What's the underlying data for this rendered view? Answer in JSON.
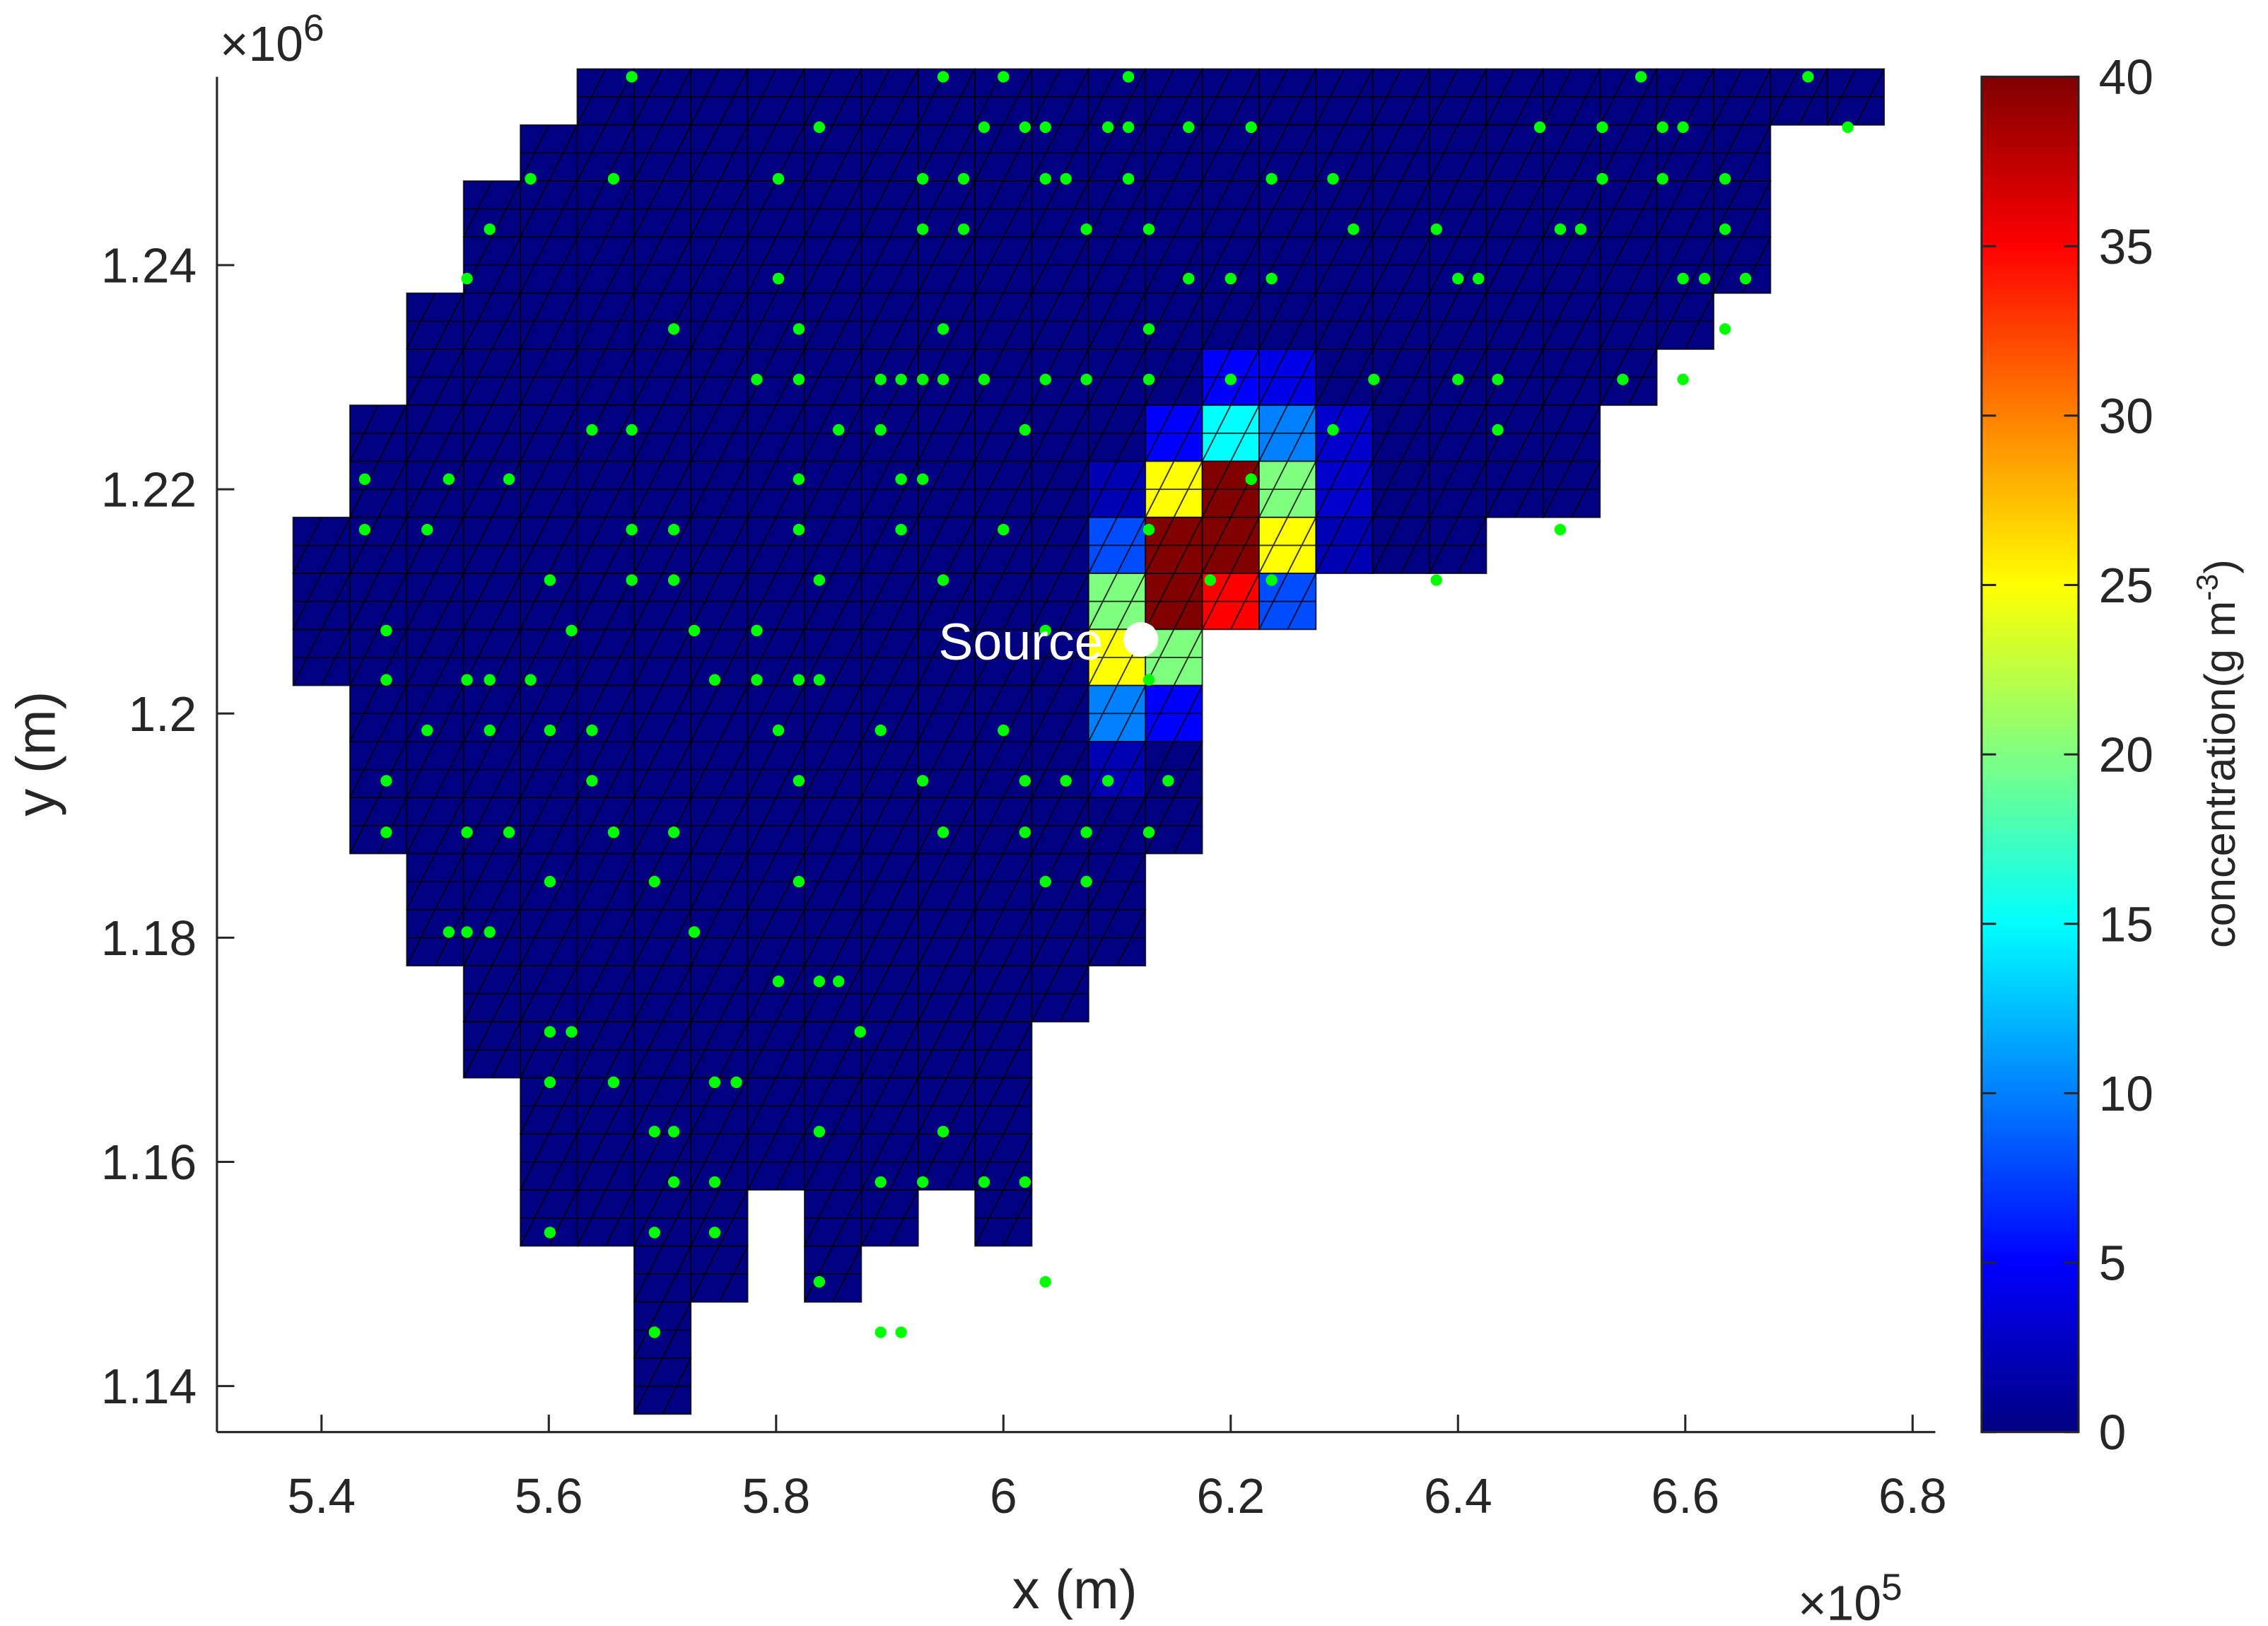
{
  "chart_data": {
    "type": "meshmap",
    "x_label": "x (m)",
    "y_label": "y (m)",
    "x_exponent": {
      "base": "×10",
      "power": "5"
    },
    "y_exponent": {
      "base": "×10",
      "power": "6"
    },
    "xlim": [
      530800,
      682000
    ],
    "ylim": [
      1135900,
      1256800
    ],
    "xticks": [
      {
        "value": 540000,
        "label": "5.4"
      },
      {
        "value": 560000,
        "label": "5.6"
      },
      {
        "value": 580000,
        "label": "5.8"
      },
      {
        "value": 600000,
        "label": "6"
      },
      {
        "value": 620000,
        "label": "6.2"
      },
      {
        "value": 640000,
        "label": "6.4"
      },
      {
        "value": 660000,
        "label": "6.6"
      },
      {
        "value": 680000,
        "label": "6.8"
      }
    ],
    "yticks": [
      {
        "value": 1140000,
        "label": "1.14"
      },
      {
        "value": 1160000,
        "label": "1.16"
      },
      {
        "value": 1180000,
        "label": "1.18"
      },
      {
        "value": 1200000,
        "label": "1.2"
      },
      {
        "value": 1220000,
        "label": "1.22"
      },
      {
        "value": 1240000,
        "label": "1.24"
      }
    ],
    "colormap": "jet",
    "clim": [
      0,
      40
    ],
    "cticks": [
      0,
      5,
      10,
      15,
      20,
      25,
      30,
      35,
      40
    ],
    "colorbar_label": {
      "text": "concentration(g m",
      "sup": "-3",
      "end": ")"
    },
    "x": [
      540000,
      545000,
      550000,
      555000,
      560000,
      565000,
      570000,
      575000,
      580000,
      585000,
      590000,
      595000,
      600000,
      605000,
      610000,
      615000,
      620000,
      625000,
      630000,
      635000,
      640000,
      645000,
      650000,
      655000,
      660000,
      665000,
      670000,
      675000
    ],
    "y": [
      1255000,
      1250000,
      1245000,
      1240000,
      1235000,
      1230000,
      1225000,
      1220000,
      1215000,
      1210000,
      1205000,
      1200000,
      1195000,
      1190000,
      1185000,
      1180000,
      1175000,
      1170000,
      1165000,
      1160000,
      1155000,
      1150000,
      1145000,
      1140000
    ],
    "values": [
      [
        null,
        null,
        null,
        null,
        null,
        0,
        0,
        0,
        0,
        0,
        0,
        0,
        0,
        0,
        0,
        0,
        0,
        0,
        0,
        0,
        0,
        0,
        0,
        0,
        0,
        0,
        0,
        0
      ],
      [
        null,
        null,
        null,
        null,
        0,
        0,
        0,
        0,
        0,
        0,
        0,
        0,
        0,
        0,
        0,
        0,
        0,
        0,
        0,
        0,
        0,
        0,
        0,
        0,
        0,
        0,
        null,
        null
      ],
      [
        null,
        null,
        null,
        0,
        0,
        0,
        0,
        0,
        0,
        0,
        0,
        0,
        0,
        0,
        0,
        0,
        0,
        0,
        0,
        0,
        0,
        0,
        0,
        0,
        0,
        0,
        null,
        null
      ],
      [
        null,
        null,
        null,
        0,
        0,
        0,
        0,
        0,
        0,
        0,
        0,
        0,
        0,
        0,
        0,
        0,
        0,
        0,
        0,
        0,
        0,
        0,
        0,
        0,
        0,
        0,
        null,
        null
      ],
      [
        null,
        null,
        0,
        0,
        0,
        0,
        0,
        0,
        0,
        0,
        0,
        0,
        0,
        0,
        0,
        0,
        0,
        0,
        0,
        0,
        0,
        0,
        0,
        0,
        0,
        null,
        null,
        null
      ],
      [
        null,
        null,
        0,
        0,
        0,
        0,
        0,
        0,
        0,
        0,
        0,
        0,
        0,
        0,
        0,
        0,
        5,
        4,
        0,
        0,
        0,
        0,
        0,
        0,
        null,
        null,
        null,
        null
      ],
      [
        null,
        0,
        0,
        0,
        0,
        0,
        0,
        0,
        0,
        0,
        0,
        0,
        0,
        0,
        0,
        5,
        15,
        10,
        3,
        0,
        0,
        0,
        0,
        null,
        null,
        null,
        null,
        null
      ],
      [
        null,
        0,
        0,
        0,
        0,
        0,
        0,
        0,
        0,
        0,
        0,
        0,
        0,
        0,
        2,
        25,
        40,
        20,
        3,
        0,
        0,
        0,
        0,
        null,
        null,
        null,
        null,
        null
      ],
      [
        0,
        0,
        0,
        0,
        0,
        0,
        0,
        0,
        0,
        0,
        0,
        0,
        0,
        0,
        8,
        40,
        40,
        25,
        2,
        0,
        0,
        null,
        null,
        null,
        null,
        null,
        null,
        null
      ],
      [
        0,
        0,
        0,
        0,
        0,
        0,
        0,
        0,
        0,
        0,
        0,
        0,
        0,
        0,
        20,
        40,
        35,
        8,
        null,
        null,
        null,
        null,
        null,
        null,
        null,
        null,
        null,
        null
      ],
      [
        0,
        0,
        0,
        0,
        0,
        0,
        0,
        0,
        0,
        0,
        0,
        0,
        0,
        0,
        25,
        20,
        null,
        null,
        null,
        null,
        null,
        null,
        null,
        null,
        null,
        null,
        null,
        null
      ],
      [
        null,
        0,
        0,
        0,
        0,
        0,
        0,
        0,
        0,
        0,
        0,
        0,
        0,
        0,
        10,
        5,
        null,
        null,
        null,
        null,
        null,
        null,
        null,
        null,
        null,
        null,
        null,
        null
      ],
      [
        null,
        0,
        0,
        0,
        0,
        0,
        0,
        0,
        0,
        0,
        0,
        0,
        0,
        0,
        2,
        0,
        null,
        null,
        null,
        null,
        null,
        null,
        null,
        null,
        null,
        null,
        null,
        null
      ],
      [
        null,
        0,
        0,
        0,
        0,
        0,
        0,
        0,
        0,
        0,
        0,
        0,
        0,
        0,
        0,
        0,
        null,
        null,
        null,
        null,
        null,
        null,
        null,
        null,
        null,
        null,
        null,
        null
      ],
      [
        null,
        null,
        0,
        0,
        0,
        0,
        0,
        0,
        0,
        0,
        0,
        0,
        0,
        0,
        0,
        null,
        null,
        null,
        null,
        null,
        null,
        null,
        null,
        null,
        null,
        null,
        null,
        null
      ],
      [
        null,
        null,
        0,
        0,
        0,
        0,
        0,
        0,
        0,
        0,
        0,
        0,
        0,
        0,
        0,
        null,
        null,
        null,
        null,
        null,
        null,
        null,
        null,
        null,
        null,
        null,
        null,
        null
      ],
      [
        null,
        null,
        null,
        0,
        0,
        0,
        0,
        0,
        0,
        0,
        0,
        0,
        0,
        0,
        null,
        null,
        null,
        null,
        null,
        null,
        null,
        null,
        null,
        null,
        null,
        null,
        null,
        null
      ],
      [
        null,
        null,
        null,
        0,
        0,
        0,
        0,
        0,
        0,
        0,
        0,
        0,
        0,
        null,
        null,
        null,
        null,
        null,
        null,
        null,
        null,
        null,
        null,
        null,
        null,
        null,
        null,
        null
      ],
      [
        null,
        null,
        null,
        null,
        0,
        0,
        0,
        0,
        0,
        0,
        0,
        0,
        0,
        null,
        null,
        null,
        null,
        null,
        null,
        null,
        null,
        null,
        null,
        null,
        null,
        null,
        null,
        null
      ],
      [
        null,
        null,
        null,
        null,
        0,
        0,
        0,
        0,
        0,
        0,
        0,
        0,
        0,
        null,
        null,
        null,
        null,
        null,
        null,
        null,
        null,
        null,
        null,
        null,
        null,
        null,
        null,
        null
      ],
      [
        null,
        null,
        null,
        null,
        0,
        0,
        0,
        0,
        null,
        0,
        0,
        null,
        0,
        null,
        null,
        null,
        null,
        null,
        null,
        null,
        null,
        null,
        null,
        null,
        null,
        null,
        null,
        null
      ],
      [
        null,
        null,
        null,
        null,
        null,
        null,
        0,
        0,
        null,
        0,
        null,
        null,
        null,
        null,
        null,
        null,
        null,
        null,
        null,
        null,
        null,
        null,
        null,
        null,
        null,
        null,
        null,
        null
      ],
      [
        null,
        null,
        null,
        null,
        null,
        null,
        0,
        null,
        null,
        null,
        null,
        null,
        null,
        null,
        null,
        null,
        null,
        null,
        null,
        null,
        null,
        null,
        null,
        null,
        null,
        null,
        null,
        null
      ],
      [
        null,
        null,
        null,
        null,
        null,
        null,
        0,
        null,
        null,
        null,
        null,
        null,
        null,
        null,
        null,
        null,
        null,
        null,
        null,
        null,
        null,
        null,
        null,
        null,
        null,
        null,
        null,
        null
      ]
    ],
    "points": {
      "color": "#00ff00",
      "x": [
        567300,
        594700,
        600000,
        611000,
        656100,
        670800,
        583800,
        598300,
        601900,
        603700,
        609200,
        611000,
        616300,
        621800,
        647200,
        652700,
        658000,
        659800,
        674300,
        558400,
        565700,
        580200,
        592900,
        596500,
        603700,
        605500,
        611000,
        623600,
        629000,
        652700,
        658000,
        663500,
        554800,
        592900,
        596500,
        607300,
        612800,
        630800,
        638100,
        649000,
        650800,
        663500,
        552800,
        580200,
        616300,
        620000,
        623600,
        640000,
        641800,
        659800,
        661700,
        665300,
        571000,
        582000,
        594700,
        612800,
        663500,
        578300,
        582000,
        589200,
        591000,
        592900,
        594700,
        598300,
        603700,
        607300,
        612800,
        620000,
        632600,
        640000,
        643500,
        654500,
        659800,
        563800,
        567300,
        585500,
        589200,
        601900,
        629000,
        643500,
        543800,
        551200,
        556500,
        582000,
        591000,
        592900,
        621800,
        543800,
        549300,
        567300,
        571000,
        582000,
        591000,
        600000,
        612800,
        649000,
        560100,
        567300,
        571000,
        583800,
        594700,
        618200,
        623600,
        638100,
        545700,
        562000,
        572800,
        578300,
        603700,
        612800,
        545700,
        552800,
        554800,
        558400,
        574600,
        578300,
        582000,
        583800,
        612800,
        549300,
        554800,
        560100,
        563800,
        580200,
        589200,
        600000,
        545700,
        563800,
        582000,
        592900,
        601900,
        605500,
        609200,
        614500,
        545700,
        552800,
        556500,
        565700,
        571000,
        594700,
        601900,
        607300,
        612800,
        560100,
        569300,
        582000,
        603700,
        607300,
        551200,
        552800,
        554800,
        572800,
        580200,
        583800,
        585500,
        560100,
        562000,
        587400,
        560100,
        565700,
        574600,
        576500,
        569300,
        571000,
        583800,
        594700,
        571000,
        574600,
        589200,
        592900,
        598300,
        601900,
        560100,
        569300,
        574600,
        583800,
        603700,
        569300,
        589200,
        591000
      ],
      "y": [
        1256800,
        1256800,
        1256800,
        1256800,
        1256800,
        1256800,
        1252300,
        1252300,
        1252300,
        1252300,
        1252300,
        1252300,
        1252300,
        1252300,
        1252300,
        1252300,
        1252300,
        1252300,
        1252300,
        1247700,
        1247700,
        1247700,
        1247700,
        1247700,
        1247700,
        1247700,
        1247700,
        1247700,
        1247700,
        1247700,
        1247700,
        1247700,
        1243200,
        1243200,
        1243200,
        1243200,
        1243200,
        1243200,
        1243200,
        1243200,
        1243200,
        1243200,
        1238800,
        1238800,
        1238800,
        1238800,
        1238800,
        1238800,
        1238800,
        1238800,
        1238800,
        1238800,
        1234300,
        1234300,
        1234300,
        1234300,
        1234300,
        1229800,
        1229800,
        1229800,
        1229800,
        1229800,
        1229800,
        1229800,
        1229800,
        1229800,
        1229800,
        1229800,
        1229800,
        1229800,
        1229800,
        1229800,
        1229800,
        1225300,
        1225300,
        1225300,
        1225300,
        1225300,
        1225300,
        1225300,
        1220900,
        1220900,
        1220900,
        1220900,
        1220900,
        1220900,
        1220900,
        1216400,
        1216400,
        1216400,
        1216400,
        1216400,
        1216400,
        1216400,
        1216400,
        1216400,
        1211900,
        1211900,
        1211900,
        1211900,
        1211900,
        1211900,
        1211900,
        1211900,
        1207400,
        1207400,
        1207400,
        1207400,
        1207400,
        1207400,
        1203000,
        1203000,
        1203000,
        1203000,
        1203000,
        1203000,
        1203000,
        1203000,
        1203000,
        1198500,
        1198500,
        1198500,
        1198500,
        1198500,
        1198500,
        1198500,
        1194000,
        1194000,
        1194000,
        1194000,
        1194000,
        1194000,
        1194000,
        1194000,
        1189400,
        1189400,
        1189400,
        1189400,
        1189400,
        1189400,
        1189400,
        1189400,
        1189400,
        1185000,
        1185000,
        1185000,
        1185000,
        1185000,
        1180500,
        1180500,
        1180500,
        1180500,
        1176100,
        1176100,
        1176100,
        1171600,
        1171600,
        1171600,
        1167100,
        1167100,
        1167100,
        1167100,
        1162700,
        1162700,
        1162700,
        1162700,
        1158200,
        1158200,
        1158200,
        1158200,
        1158200,
        1158200,
        1153700,
        1153700,
        1153700,
        1149300,
        1149300,
        1144800,
        1144800,
        1144800
      ]
    },
    "source": {
      "x": 612100,
      "y": 1206600,
      "label": "Source",
      "color": "#ffffff"
    }
  }
}
